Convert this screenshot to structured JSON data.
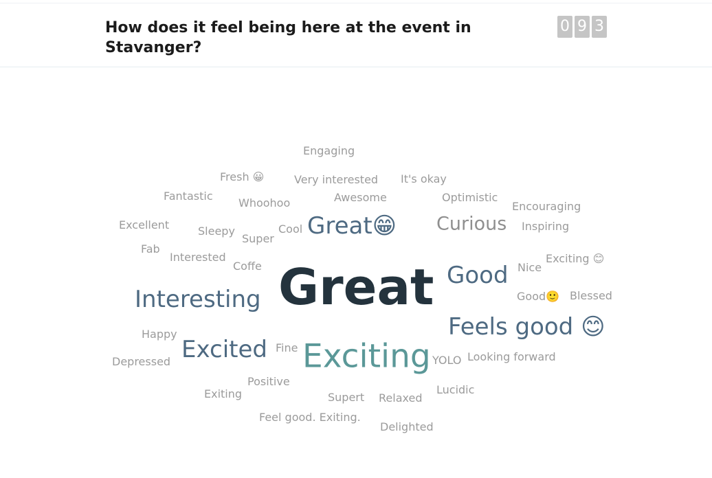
{
  "header": {
    "title": "How does it feel being here at the event in Stavanger?",
    "response_count_digits": [
      "0",
      "9",
      "3"
    ]
  },
  "colors": {
    "primary_word": "#24333d",
    "secondary_word": "#4e6a82",
    "accent_word": "#5b9898",
    "minor_word": "#9b9b9b",
    "counter_bg": "#c5c5c5"
  },
  "words": [
    {
      "text": "Engaging"
    },
    {
      "text": "Fresh 😀"
    },
    {
      "text": "Very interested"
    },
    {
      "text": "It's okay"
    },
    {
      "text": "Fantastic"
    },
    {
      "text": "Whoohoo"
    },
    {
      "text": "Awesome"
    },
    {
      "text": "Optimistic"
    },
    {
      "text": "Encouraging"
    },
    {
      "text": "Excellent"
    },
    {
      "text": "Sleepy"
    },
    {
      "text": "Super"
    },
    {
      "text": "Cool"
    },
    {
      "text": "Great😁"
    },
    {
      "text": "Curious"
    },
    {
      "text": "Inspiring"
    },
    {
      "text": "Fab"
    },
    {
      "text": "Interested"
    },
    {
      "text": "Coffe"
    },
    {
      "text": "Great"
    },
    {
      "text": "Good"
    },
    {
      "text": "Nice"
    },
    {
      "text": "Exciting 😊"
    },
    {
      "text": "Interesting"
    },
    {
      "text": "Good🙂"
    },
    {
      "text": "Blessed"
    },
    {
      "text": "Feels good 😊"
    },
    {
      "text": "Happy"
    },
    {
      "text": "Excited"
    },
    {
      "text": "Fine"
    },
    {
      "text": "Exciting"
    },
    {
      "text": "YOLO"
    },
    {
      "text": "Looking forward"
    },
    {
      "text": "Depressed"
    },
    {
      "text": "Positive"
    },
    {
      "text": "Exiting"
    },
    {
      "text": "Supert"
    },
    {
      "text": "Relaxed"
    },
    {
      "text": "Lucidic"
    },
    {
      "text": "Feel good. Exiting."
    },
    {
      "text": "Delighted"
    }
  ]
}
